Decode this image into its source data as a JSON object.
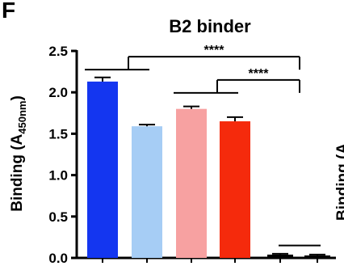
{
  "panel_letter": "F",
  "clipped_neighbor_text": "Binding (A",
  "chart_data": {
    "type": "bar",
    "title": "B2 binder",
    "ylabel": "Binding (A",
    "ylabel_sub": "450nm",
    "ylabel_close": ")",
    "ylim": [
      0,
      2.5
    ],
    "yticks": [
      "0.0",
      "0.5",
      "1.0",
      "1.5",
      "2.0",
      "2.5"
    ],
    "grid": false,
    "categories": [
      "",
      "",
      "",
      "",
      "",
      ""
    ],
    "values": [
      2.13,
      1.59,
      1.8,
      1.65,
      0.04,
      0.03
    ],
    "errors": [
      0.05,
      0.02,
      0.03,
      0.05,
      0.01,
      0.01
    ],
    "colors": [
      "#1436f0",
      "#a6cdf5",
      "#f7a1a1",
      "#f52a0c",
      "#000000",
      "#000000"
    ],
    "annotations": [
      {
        "label": "****",
        "from_bar": 0,
        "to_bar": 4,
        "level": 2.43
      },
      {
        "label": "****",
        "from_bar": 2,
        "to_bar": 4,
        "level": 2.15
      }
    ],
    "extra_line": {
      "from_bar": 4,
      "to_bar": 5,
      "level": 0.15
    }
  }
}
